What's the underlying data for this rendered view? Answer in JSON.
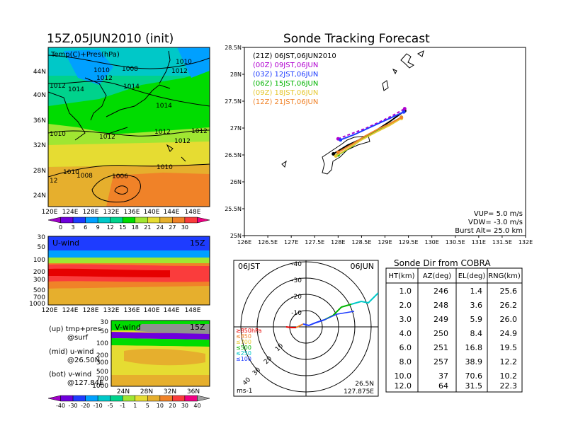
{
  "left_title": "15Z,05JUN2010 (init)",
  "right_title": "Sonde Tracking Forecast",
  "map": {
    "panel_label": "Temp(C)+Pres(hPa)",
    "lat_labels": [
      "44N",
      "40N",
      "36N",
      "32N",
      "28N",
      "24N"
    ],
    "lon_labels": [
      "120E",
      "124E",
      "128E",
      "132E",
      "136E",
      "140E",
      "144E",
      "148E"
    ],
    "pressure_labels": [
      "1012",
      "1010",
      "1008",
      "1010",
      "1012",
      "1012",
      "1014",
      "1014",
      "1014",
      "1012",
      "1012",
      "1012",
      "1012",
      "1010",
      "1010",
      "1008",
      "1006",
      "1010",
      "12"
    ],
    "colorbar_ticks": [
      "0",
      "3",
      "6",
      "9",
      "12",
      "15",
      "18",
      "21",
      "24",
      "27",
      "30"
    ],
    "colorbar_colors": [
      "#a000c8",
      "#6e00dc",
      "#1e3cff",
      "#00a0ff",
      "#00c8c8",
      "#00d28c",
      "#00dc00",
      "#a0e632",
      "#e6dc32",
      "#e6af2d",
      "#f08228",
      "#fa3c3c",
      "#f00082"
    ]
  },
  "uwind": {
    "label": "U-wind",
    "time": "15Z",
    "y_ticks": [
      "30",
      "50",
      "100",
      "200",
      "300",
      "500",
      "700",
      "1000"
    ],
    "x_ticks": [
      "120E",
      "124E",
      "128E",
      "132E",
      "136E",
      "140E",
      "144E",
      "148E"
    ]
  },
  "vwind": {
    "label": "V-wind",
    "time": "15Z",
    "y_ticks": [
      "30",
      "50",
      "100",
      "200",
      "300",
      "500",
      "700",
      "1000"
    ],
    "x_ticks": [
      "24N",
      "28N",
      "32N",
      "36N"
    ]
  },
  "legend_text": {
    "up_line1": "(up) tmp+pres",
    "up_line2": "@surf",
    "mid_line1": "(mid) u-wind",
    "mid_line2": "@26.50N",
    "bot_line1": "(bot) v-wind",
    "bot_line2": "@127.84E"
  },
  "wind_colorbar": {
    "ticks": [
      "-40",
      "-30",
      "-20",
      "-10",
      "-5",
      "-1",
      "1",
      "5",
      "10",
      "20",
      "30",
      "40"
    ],
    "colors": [
      "#a000c8",
      "#6e00dc",
      "#1e3cff",
      "#00a0ff",
      "#00c8c8",
      "#00d28c",
      "#a0e632",
      "#e6dc32",
      "#e6af2d",
      "#f08228",
      "#fa3c3c",
      "#f00082",
      "#a0a0a0"
    ]
  },
  "track_map": {
    "runs": [
      {
        "label": "(21Z) 06JST,06JUN2010",
        "color": "#000000"
      },
      {
        "label": "(00Z) 09JST,06JUN",
        "color": "#b000d0"
      },
      {
        "label": "(03Z) 12JST,06JUN",
        "color": "#1e3cff"
      },
      {
        "label": "(06Z) 15JST,06JUN",
        "color": "#00b400"
      },
      {
        "label": "(09Z) 18JST,06JUN",
        "color": "#e6c832"
      },
      {
        "label": "(12Z) 21JST,06JUN",
        "color": "#f08228"
      }
    ],
    "params": [
      "VUP= 5.0 m/s",
      "VDW= -3.0 m/s",
      "Burst Alt= 25.0 km"
    ]
  },
  "polar": {
    "left_label": "06JST",
    "right_label": "06JUN",
    "ring_labels": [
      "-10",
      "-20",
      "-30",
      "-40"
    ],
    "unit": "ms-1",
    "loc_lat": "26.5N",
    "loc_lon": "127.875E",
    "level_legend": [
      {
        "label": "≥850hPa",
        "color": "#e60000"
      },
      {
        "label": "≤850",
        "color": "#f08228"
      },
      {
        "label": "≤700",
        "color": "#e6c832"
      },
      {
        "label": "≤500",
        "color": "#00b400"
      },
      {
        "label": "≤250",
        "color": "#00c8c8"
      },
      {
        "label": "≤100",
        "color": "#1e3cff"
      }
    ]
  },
  "sonde_table": {
    "title": "Sonde Dir from COBRA",
    "headers": [
      "HT(km)",
      "AZ(deg)",
      "EL(deg)",
      "RNG(km)"
    ],
    "rows": [
      [
        "1.0",
        "246",
        "1.4",
        "25.6"
      ],
      [
        "2.0",
        "248",
        "3.6",
        "26.2"
      ],
      [
        "3.0",
        "249",
        "5.9",
        "26.0"
      ],
      [
        "4.0",
        "250",
        "8.4",
        "24.9"
      ],
      [
        "6.0",
        "251",
        "16.8",
        "19.5"
      ],
      [
        "8.0",
        "257",
        "38.9",
        "12.2"
      ],
      [
        "10.0",
        "37",
        "70.6",
        "10.2"
      ],
      [
        "12.0",
        "64",
        "31.5",
        "22.3"
      ]
    ]
  },
  "chart_data": {
    "type": "line",
    "title": "Sonde Tracking Forecast",
    "x_ticks": [
      "126E",
      "126.5E",
      "127E",
      "127.5E",
      "128E",
      "128.5E",
      "129E",
      "129.5E",
      "130E",
      "130.5E",
      "131E",
      "131.5E",
      "132E"
    ],
    "y_ticks": [
      "25N",
      "25.5N",
      "26N",
      "26.5N",
      "27N",
      "27.5N",
      "28N",
      "28.5N"
    ],
    "xlim": [
      126,
      132
    ],
    "ylim": [
      25,
      28.5
    ],
    "series": [
      {
        "name": "(21Z) 06JST,06JUN2010",
        "color": "#000000",
        "x": [
          127.9,
          128.2,
          128.5,
          128.8,
          129.1,
          129.42
        ],
        "y": [
          26.52,
          26.68,
          26.8,
          26.95,
          27.12,
          27.32
        ]
      },
      {
        "name": "(00Z) 09JST,06JUN",
        "color": "#b000d0",
        "x": [
          128.0,
          128.3,
          128.6,
          128.9,
          129.2,
          129.42
        ],
        "y": [
          26.8,
          26.9,
          27.0,
          27.12,
          27.25,
          27.36
        ]
      },
      {
        "name": "(03Z) 12JST,06JUN",
        "color": "#1e3cff",
        "x": [
          128.05,
          128.35,
          128.6,
          128.85,
          129.1,
          129.4
        ],
        "y": [
          26.78,
          26.88,
          26.98,
          27.08,
          27.18,
          27.3
        ]
      },
      {
        "name": "(06Z) 15JST,06JUN",
        "color": "#00b400",
        "x": [
          128.0,
          128.3,
          128.55,
          128.8,
          129.1,
          129.35
        ],
        "y": [
          26.5,
          26.66,
          26.82,
          26.95,
          27.08,
          27.2
        ]
      },
      {
        "name": "(09Z) 18JST,06JUN",
        "color": "#e6c832",
        "x": [
          127.95,
          128.25,
          128.5,
          128.8,
          129.1,
          129.35
        ],
        "y": [
          26.48,
          26.64,
          26.78,
          26.92,
          27.05,
          27.18
        ]
      },
      {
        "name": "(12Z) 21JST,06JUN",
        "color": "#f08228",
        "x": [
          128.0,
          128.3,
          128.55,
          128.85,
          129.1,
          129.35
        ],
        "y": [
          26.55,
          26.7,
          26.84,
          26.98,
          27.08,
          27.2
        ]
      }
    ]
  }
}
